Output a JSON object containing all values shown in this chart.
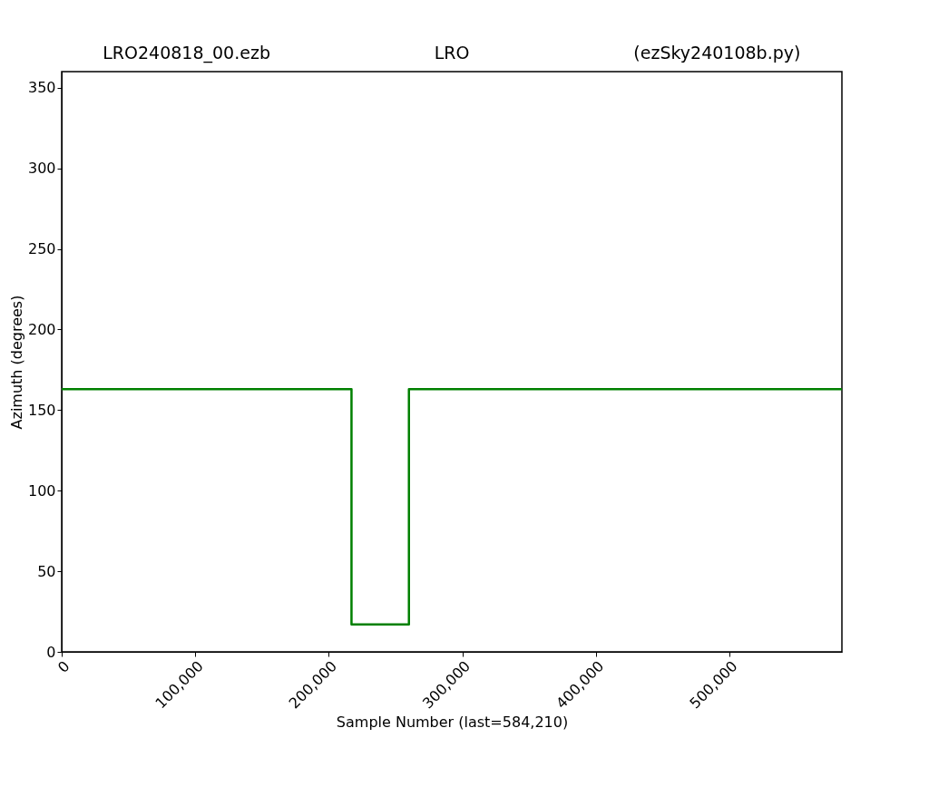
{
  "chart_data": {
    "type": "step",
    "title": "LRO240818_00.ezb            LRO          (ezSky240108b.py)",
    "xlabel": "Sample Number (last=584,210)",
    "ylabel": "Azimuth (degrees)",
    "x": [
      0,
      217000,
      260000,
      584210
    ],
    "series": [
      {
        "color": "#008000",
        "values": [
          163,
          17,
          163,
          163
        ]
      }
    ],
    "xlim": [
      0,
      584210
    ],
    "xticks": [
      0,
      {
        "value": 100000,
        "label": "100,000"
      },
      {
        "value": 200000,
        "label": "200,000"
      },
      {
        "value": 300000,
        "label": "300,000"
      },
      {
        "value": 400000,
        "label": "400,000"
      },
      {
        "value": 500000,
        "label": "500,000"
      }
    ],
    "ylim": [
      0,
      360
    ],
    "yticks": [
      0,
      50,
      100,
      150,
      200,
      250,
      300,
      350
    ],
    "grid": false,
    "marker": "none",
    "line_style": "solid"
  }
}
